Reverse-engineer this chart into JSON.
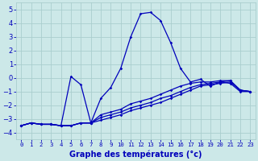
{
  "xlabel": "Graphe des températures (°c)",
  "background_color": "#cce8e8",
  "grid_color": "#aacece",
  "line_color": "#0000bb",
  "x_hours": [
    0,
    1,
    2,
    3,
    4,
    5,
    6,
    7,
    8,
    9,
    10,
    11,
    12,
    13,
    14,
    15,
    16,
    17,
    18,
    19,
    20,
    21,
    22,
    23
  ],
  "temp_main": [
    -3.5,
    -3.3,
    -3.4,
    -3.4,
    -3.5,
    0.1,
    -0.5,
    -3.3,
    -1.5,
    -0.7,
    0.7,
    3.0,
    4.7,
    4.8,
    4.2,
    2.6,
    0.7,
    -0.3,
    -0.1,
    -0.6,
    -0.3,
    -0.4,
    -1.0,
    -1.0
  ],
  "temp_line2": [
    -3.5,
    -3.3,
    -3.4,
    -3.4,
    -3.5,
    -3.5,
    -3.3,
    -3.3,
    -2.7,
    -2.5,
    -2.3,
    -1.9,
    -1.7,
    -1.5,
    -1.2,
    -0.9,
    -0.6,
    -0.4,
    -0.3,
    -0.3,
    -0.2,
    -0.2,
    -0.9,
    -1.0
  ],
  "temp_line3": [
    -3.5,
    -3.3,
    -3.4,
    -3.4,
    -3.5,
    -3.5,
    -3.3,
    -3.3,
    -2.9,
    -2.7,
    -2.5,
    -2.2,
    -2.0,
    -1.8,
    -1.5,
    -1.3,
    -1.0,
    -0.7,
    -0.5,
    -0.4,
    -0.3,
    -0.2,
    -0.9,
    -1.0
  ],
  "temp_line4": [
    -3.5,
    -3.3,
    -3.4,
    -3.4,
    -3.5,
    -3.5,
    -3.3,
    -3.3,
    -3.1,
    -2.9,
    -2.7,
    -2.4,
    -2.2,
    -2.0,
    -1.8,
    -1.5,
    -1.2,
    -0.9,
    -0.6,
    -0.5,
    -0.4,
    -0.3,
    -0.9,
    -1.0
  ],
  "ylim": [
    -4.5,
    5.5
  ],
  "xlim": [
    -0.5,
    23.5
  ],
  "yticks": [
    -4,
    -3,
    -2,
    -1,
    0,
    1,
    2,
    3,
    4,
    5
  ],
  "xticks": [
    0,
    1,
    2,
    3,
    4,
    5,
    6,
    7,
    8,
    9,
    10,
    11,
    12,
    13,
    14,
    15,
    16,
    17,
    18,
    19,
    20,
    21,
    22,
    23
  ],
  "xlabel_fontsize": 7.0,
  "xlabel_fontweight": "bold",
  "xtick_fontsize": 5.2,
  "ytick_fontsize": 6.0
}
